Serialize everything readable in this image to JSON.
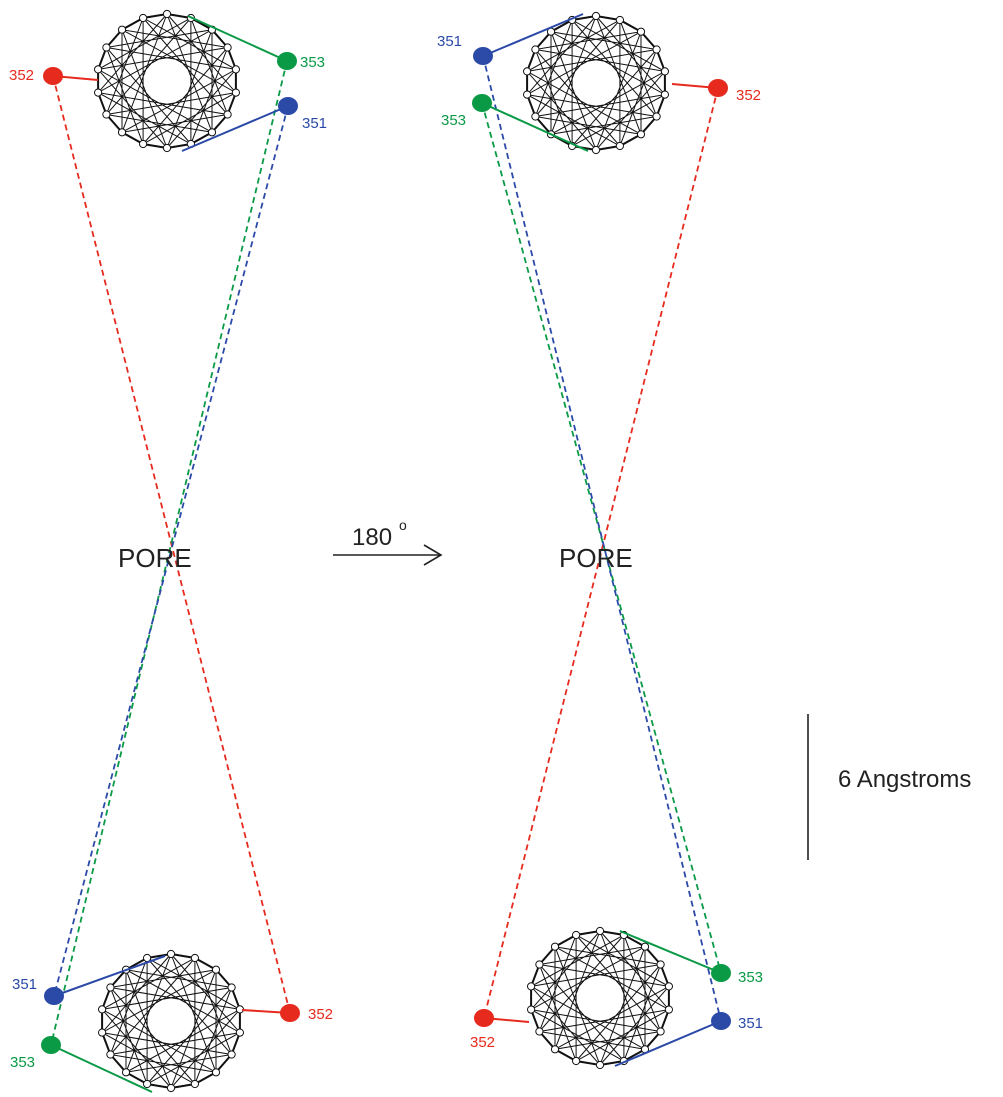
{
  "labels": {
    "pore_left": "PORE",
    "pore_right": "PORE",
    "rotation": "180",
    "rotation_degree": "o",
    "scale": "6 Angstroms"
  },
  "residues": {
    "r351": "351",
    "r352": "352",
    "r353": "353"
  },
  "colors": {
    "r351": "#2b4aa8",
    "r352": "#e62a1e",
    "r353": "#0a9a46",
    "helix": "#111111",
    "text": "#222222"
  },
  "icons": {
    "rotation_arrow": "right-arrow-icon"
  }
}
